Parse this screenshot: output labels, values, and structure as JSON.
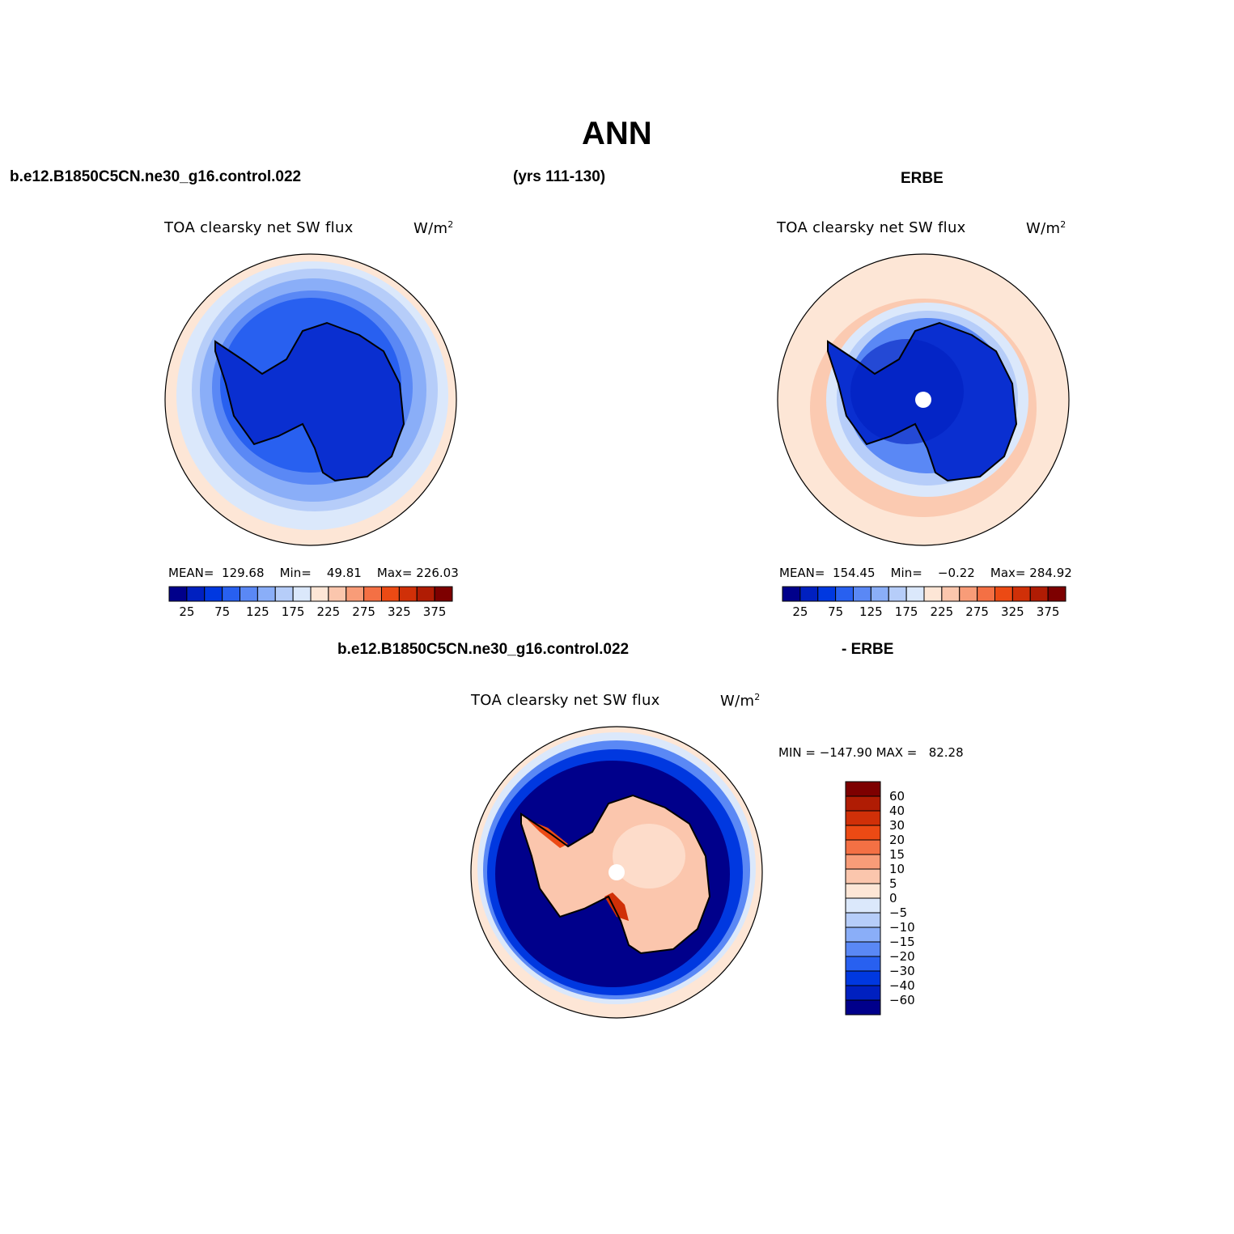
{
  "figure_title": "ANN",
  "header": {
    "case_name": "b.e12.B1850C5CN.ne30_g16.control.022",
    "years": "(yrs 111-130)",
    "obs_name": "ERBE"
  },
  "panels": [
    {
      "id": "model",
      "title": "TOA clearsky net SW flux",
      "units": "W/m",
      "units_sup": "2",
      "stats": {
        "mean_label": "MEAN=",
        "mean": "129.68",
        "min_label": "Min=",
        "min": "49.81",
        "max_label": "Max=",
        "max": "226.03"
      },
      "colorbar": {
        "colors": [
          "#00008b",
          "#0020c0",
          "#0038e0",
          "#2860f0",
          "#5a88f5",
          "#8aaef8",
          "#b6cdf9",
          "#dbe8fb",
          "#fde6d6",
          "#fbc6ad",
          "#f89c78",
          "#f47044",
          "#ec4a14",
          "#d03008",
          "#b01c04",
          "#7d0000"
        ],
        "labels": [
          "25",
          "75",
          "125",
          "175",
          "225",
          "275",
          "325",
          "375"
        ]
      }
    },
    {
      "id": "obs",
      "title": "TOA clearsky net SW flux",
      "units": "W/m",
      "units_sup": "2",
      "stats": {
        "mean_label": "MEAN=",
        "mean": "154.45",
        "min_label": "Min=",
        "min": "−0.22",
        "max_label": "Max=",
        "max": "284.92"
      },
      "colorbar": {
        "colors": [
          "#00008b",
          "#0020c0",
          "#0038e0",
          "#2860f0",
          "#5a88f5",
          "#8aaef8",
          "#b6cdf9",
          "#dbe8fb",
          "#fde6d6",
          "#fbc6ad",
          "#f89c78",
          "#f47044",
          "#ec4a14",
          "#d03008",
          "#b01c04",
          "#7d0000"
        ],
        "labels": [
          "25",
          "75",
          "125",
          "175",
          "225",
          "275",
          "325",
          "375"
        ]
      }
    },
    {
      "id": "diff",
      "title": "TOA clearsky net SW flux",
      "units": "W/m",
      "units_sup": "2",
      "stats": {
        "min_label": "MIN =",
        "min": "−147.90",
        "max_label": "MAX =",
        "max": "82.28"
      },
      "colorbar": {
        "colors": [
          "#7d0000",
          "#b01c04",
          "#d03008",
          "#ec4a14",
          "#f47044",
          "#f89c78",
          "#fbc6ad",
          "#fde6d6",
          "#dbe8fb",
          "#b6cdf9",
          "#8aaef8",
          "#5a88f5",
          "#2860f0",
          "#0038e0",
          "#0020c0",
          "#00008b"
        ],
        "labels": [
          "60",
          "40",
          "30",
          "20",
          "15",
          "10",
          "5",
          "0",
          "−5",
          "−10",
          "−15",
          "−20",
          "−30",
          "−40",
          "−60"
        ]
      }
    }
  ],
  "diff_header": {
    "case_name": "b.e12.B1850C5CN.ne30_g16.control.022",
    "obs_name": "- ERBE"
  },
  "palette": {
    "ocean_light": "#fde6d6",
    "deep_blue": "#00008b",
    "ice_blue": "#0a2fd0",
    "coast": "#000000"
  }
}
